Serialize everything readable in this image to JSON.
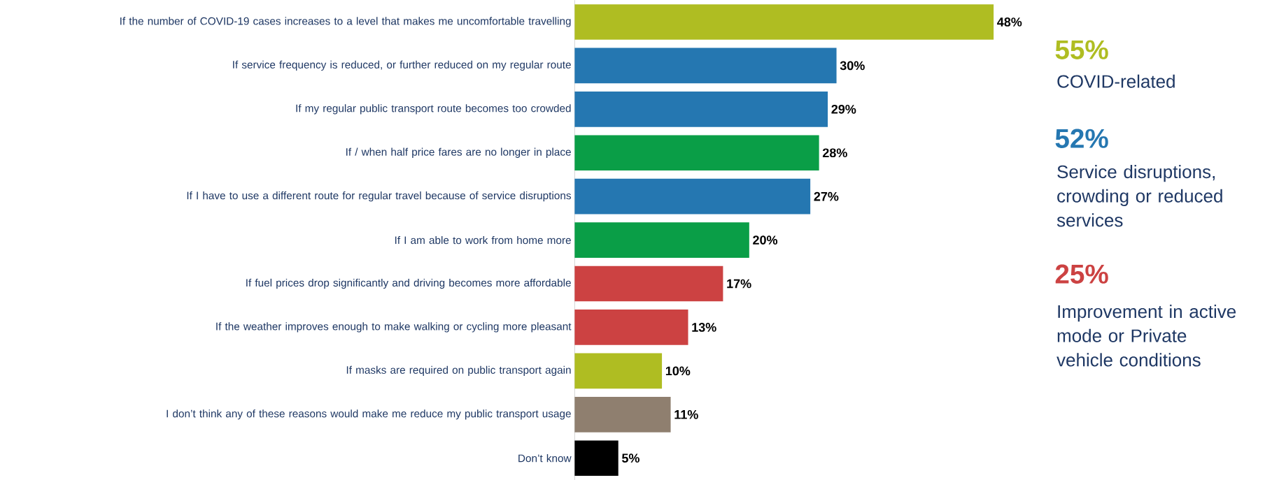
{
  "chart_data": {
    "type": "bar",
    "orientation": "horizontal",
    "categories": [
      "If the number of COVID-19 cases increases to a level that makes me uncomfortable travelling",
      "If service frequency is reduced, or further reduced on my regular route",
      "If my regular public transport route becomes too crowded",
      "If / when half price fares are no longer in place",
      "If I have to use a different route for regular travel because of service disruptions",
      "If I am able to work from home more",
      "If fuel prices drop significantly and driving becomes more affordable",
      "If the weather improves enough to make walking or cycling more pleasant",
      "If masks are required on public transport again",
      "I don’t think any of these reasons would make me reduce my public transport usage",
      "Don’t know"
    ],
    "values": [
      48,
      30,
      29,
      28,
      27,
      20,
      17,
      13,
      10,
      11,
      5
    ],
    "value_labels": [
      "48%",
      "30%",
      "29%",
      "28%",
      "27%",
      "20%",
      "17%",
      "13%",
      "10%",
      "11%",
      "5%"
    ],
    "colors": [
      "#afbd22",
      "#2577b1",
      "#2577b1",
      "#0a9e47",
      "#2577b1",
      "#0a9e47",
      "#cc4242",
      "#cc4242",
      "#afbd22",
      "#8f7f6f",
      "#000000"
    ],
    "tick_labels": "y",
    "annotations": [
      "55%",
      "COVID-related",
      "52%",
      "Service disruptions, crowding or reduced services",
      "25%",
      "Improvement in active mode or Private vehicle conditions"
    ]
  }
}
